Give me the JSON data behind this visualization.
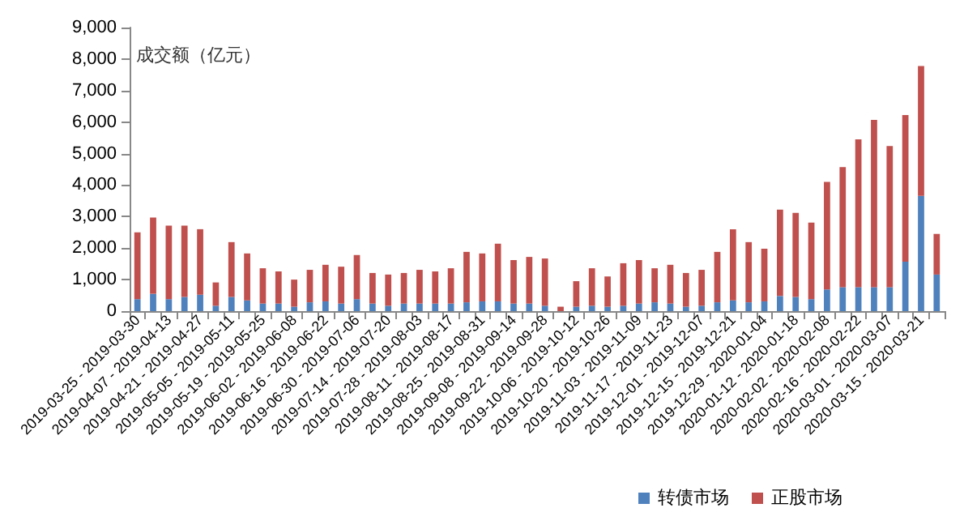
{
  "chart_data": {
    "type": "bar",
    "stacked": true,
    "ylabel": "成交额（亿元）",
    "categories": [
      "2019-03-25 - 2019-03-30",
      null,
      "2019-04-07 - 2019-04-13",
      null,
      "2019-04-21 - 2019-04-27",
      null,
      "2019-05-05 - 2019-05-11",
      null,
      "2019-05-19 - 2019-05-25",
      null,
      "2019-06-02 - 2019-06-08",
      null,
      "2019-06-16 - 2019-06-22",
      null,
      "2019-06-30 - 2019-07-06",
      null,
      "2019-07-14 - 2019-07-20",
      null,
      "2019-07-28 - 2019-08-03",
      null,
      "2019-08-11 - 2019-08-17",
      null,
      "2019-08-25 - 2019-08-31",
      null,
      "2019-09-08 - 2019-09-14",
      null,
      "2019-09-22 - 2019-09-28",
      null,
      "2019-10-06 - 2019-10-12",
      null,
      "2019-10-20 - 2019-10-26",
      null,
      "2019-11-03 - 2019-11-09",
      null,
      "2019-11-17 - 2019-11-23",
      null,
      "2019-12-01 - 2019-12-07",
      null,
      "2019-12-15 - 2019-12-21",
      null,
      "2019-12-29 - 2020-01-04",
      null,
      "2020-01-12 - 2020-01-18",
      null,
      "2020-02-02 - 2020-02-08",
      null,
      "2020-02-16 - 2020-02-22",
      null,
      "2020-03-01 - 2020-03-07",
      null,
      "2020-03-15 - 2020-03-21",
      null
    ],
    "series": [
      {
        "name": "转债市场",
        "color": "#4f81bd",
        "values": [
          380,
          550,
          380,
          450,
          520,
          170,
          450,
          340,
          240,
          240,
          140,
          280,
          310,
          240,
          380,
          240,
          170,
          240,
          240,
          240,
          240,
          280,
          310,
          310,
          240,
          240,
          170,
          null,
          140,
          170,
          140,
          170,
          240,
          280,
          240,
          140,
          170,
          280,
          340,
          280,
          310,
          480,
          450,
          380,
          690,
          760,
          760,
          760,
          760,
          1570,
          3660,
          1160
        ]
      },
      {
        "name": "正股市场",
        "color": "#c0504d",
        "values": [
          2120,
          2420,
          2330,
          2260,
          2080,
          740,
          1740,
          1490,
          1120,
          1020,
          860,
          1030,
          1160,
          1170,
          1400,
          970,
          990,
          970,
          1070,
          1020,
          1120,
          1600,
          1520,
          1830,
          1380,
          1480,
          1500,
          140,
          810,
          1190,
          960,
          1350,
          1380,
          1080,
          1230,
          1070,
          1140,
          1600,
          2260,
          1910,
          1670,
          2740,
          2670,
          2430,
          3410,
          3810,
          4690,
          5310,
          4480,
          4650,
          4120,
          1290
        ]
      }
    ],
    "ylim": [
      0,
      9000
    ],
    "yticks": [
      0,
      {
        "value": 1000,
        "label": "1,000"
      },
      {
        "value": 2000,
        "label": "2,000"
      },
      {
        "value": 3000,
        "label": "3,000"
      },
      {
        "value": 4000,
        "label": "4,000"
      },
      {
        "value": 5000,
        "label": "5,000"
      },
      {
        "value": 6000,
        "label": "6,000"
      },
      {
        "value": 7000,
        "label": "7,000"
      },
      {
        "value": 8000,
        "label": "8,000"
      },
      {
        "value": 9000,
        "label": "9,000"
      }
    ],
    "grid": false,
    "legend": "bottom"
  }
}
